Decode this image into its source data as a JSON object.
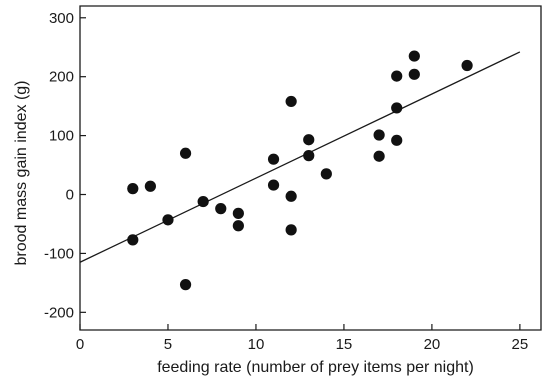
{
  "chart_data": {
    "type": "scatter",
    "title": "",
    "xlabel": "feeding rate (number of prey items per night)",
    "ylabel": "brood mass gain index (g)",
    "xlim": [
      0,
      26.2
    ],
    "ylim": [
      -230,
      320
    ],
    "xticks": [
      0,
      5,
      10,
      15,
      20,
      25
    ],
    "yticks": [
      -200,
      -100,
      0,
      100,
      200,
      300
    ],
    "xtick_labels": [
      "0",
      "5",
      "10",
      "15",
      "20",
      "25"
    ],
    "ytick_labels": [
      "-200",
      "-100",
      "0",
      "100",
      "200",
      "300"
    ],
    "grid": false,
    "legend": "none",
    "series": [
      {
        "points": [
          {
            "x": 3,
            "y": 10
          },
          {
            "x": 3,
            "y": -77
          },
          {
            "x": 4,
            "y": 14
          },
          {
            "x": 5,
            "y": -43
          },
          {
            "x": 6,
            "y": 70
          },
          {
            "x": 6,
            "y": -153
          },
          {
            "x": 7,
            "y": -12
          },
          {
            "x": 8,
            "y": -24
          },
          {
            "x": 9,
            "y": -32
          },
          {
            "x": 9,
            "y": -53
          },
          {
            "x": 11,
            "y": 60
          },
          {
            "x": 11,
            "y": 16
          },
          {
            "x": 12,
            "y": 158
          },
          {
            "x": 12,
            "y": -3
          },
          {
            "x": 12,
            "y": -60
          },
          {
            "x": 13,
            "y": 93
          },
          {
            "x": 13,
            "y": 66
          },
          {
            "x": 14,
            "y": 35
          },
          {
            "x": 17,
            "y": 101
          },
          {
            "x": 17,
            "y": 65
          },
          {
            "x": 18,
            "y": 201
          },
          {
            "x": 18,
            "y": 147
          },
          {
            "x": 18,
            "y": 92
          },
          {
            "x": 19,
            "y": 235
          },
          {
            "x": 19,
            "y": 204
          },
          {
            "x": 22,
            "y": 219
          }
        ]
      }
    ],
    "trend_line": {
      "x": [
        0,
        25
      ],
      "y": [
        -115,
        242
      ]
    }
  }
}
